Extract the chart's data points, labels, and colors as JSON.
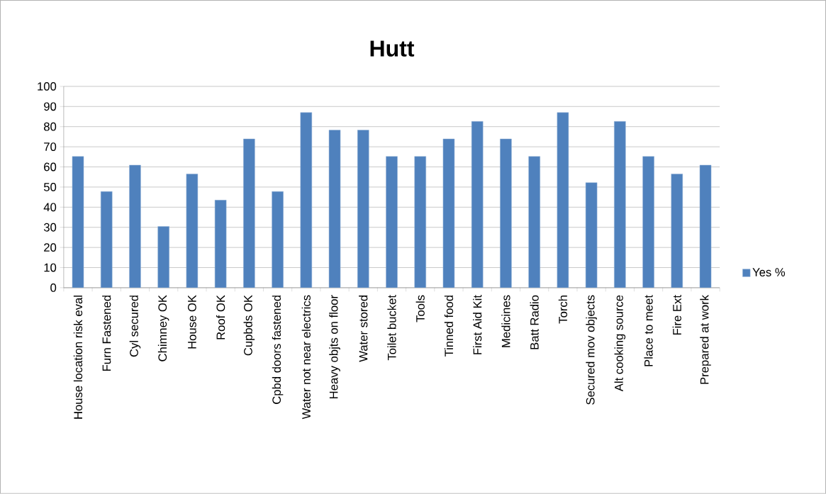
{
  "chart_data": {
    "type": "bar",
    "title": "Hutt",
    "categories": [
      "House location risk eval",
      "Furn Fastened",
      "Cyl secured",
      "Chimney OK",
      "House OK",
      "Roof OK",
      "Cupbds OK",
      "Cpbd doors fastened",
      "Water not near electrics",
      "Heavy objts on floor",
      "Water stored",
      "Toilet bucket",
      "Tools",
      "Tinned food",
      "First Aid Kit",
      "Medicines",
      "Batt Radio",
      "Torch",
      "Secured mov objects",
      "Alt cooking source",
      "Place to meet",
      "Fire Ext",
      "Prepared at work"
    ],
    "series": [
      {
        "name": "Yes %",
        "color": "#4f81bd",
        "values": [
          65.2,
          47.8,
          60.9,
          30.4,
          56.5,
          43.5,
          73.9,
          47.8,
          87.0,
          78.3,
          78.3,
          65.2,
          65.2,
          73.9,
          82.6,
          73.9,
          65.2,
          87.0,
          52.2,
          82.6,
          65.2,
          56.5,
          60.9
        ]
      }
    ],
    "ylim": [
      0,
      100
    ],
    "yticks": [
      0,
      10,
      20,
      30,
      40,
      50,
      60,
      70,
      80,
      90,
      100
    ],
    "grid": "y",
    "legend": "right"
  }
}
